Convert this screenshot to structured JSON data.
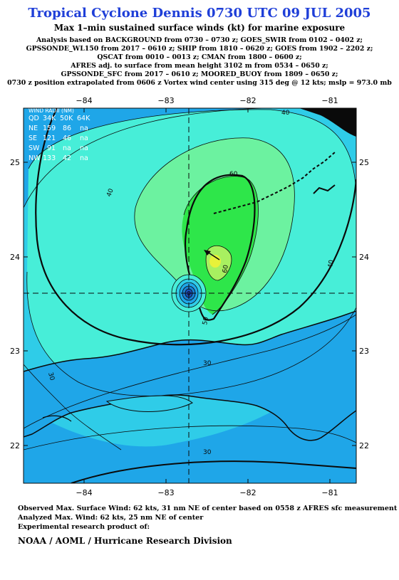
{
  "header": {
    "title": "Tropical Cyclone Dennis 0730 UTC 09 JUL 2005",
    "subtitle": "Max 1–min sustained surface winds (kt) for marine exposure",
    "analysis_lines": [
      "Analysis based on  BACKGROUND from 0730 – 0730 z;  GOES_SWIR from 0102 – 0402 z;",
      "GPSSONDE_WL150 from 2017 – 0610 z;  SHIP from 1810 – 0620 z;  GOES from 1902 – 2202 z;",
      "QSCAT from 0010 – 0013 z;  CMAN from 1800 – 0600 z;",
      "AFRES adj. to surface from mean height 3102 m from 0534 – 0650 z;",
      "GPSSONDE_SFC from 2017 – 0610 z;  MOORED_BUOY from 1809 – 0650 z;",
      "0730 z position extrapolated from 0606 z Vortex wind center using 315 deg @ 12 kts; mslp = 973.0 mb"
    ]
  },
  "map": {
    "lon_ticks": [
      "−84",
      "−83",
      "−82",
      "−81"
    ],
    "lat_ticks": [
      "25",
      "24",
      "23",
      "22"
    ],
    "contour_labels": [
      "40",
      "40",
      "60",
      "60",
      "40",
      "50",
      "30",
      "30",
      "30"
    ],
    "center": {
      "lon": -82.7,
      "lat": 23.6
    },
    "motion_vector": {
      "direction_deg": 315,
      "speed_kt": 12
    },
    "colors": {
      "lt30": "#1fa6e8",
      "c30_40": "#2fcce8",
      "c40_50": "#47eed8",
      "c50_60": "#6cf2a0",
      "c60_65": "#2ee64a",
      "c65_70": "#a8f060",
      "c70plus": "#e8f23a",
      "land": "#0a0a0a",
      "legend_text": "#ffffff"
    }
  },
  "wind_radii": {
    "title": "WIND RADII (NM)",
    "columns": [
      "QD",
      "34K",
      "50K",
      "64K"
    ],
    "rows": [
      [
        "NE",
        "159",
        "86",
        "na"
      ],
      [
        "SE",
        "121",
        "46",
        "na"
      ],
      [
        "SW",
        "91",
        "na",
        "na"
      ],
      [
        "NW",
        "133",
        "42",
        "na"
      ]
    ]
  },
  "footer": {
    "lines": [
      "Observed Max. Surface Wind: 62 kts, 31 nm NE of center based on 0558 z AFRES sfc measurement",
      "Analyzed Max. Wind: 62 kts, 25 nm NE of center",
      "Experimental research product of:"
    ],
    "credit": "NOAA / AOML / Hurricane Research Division"
  }
}
